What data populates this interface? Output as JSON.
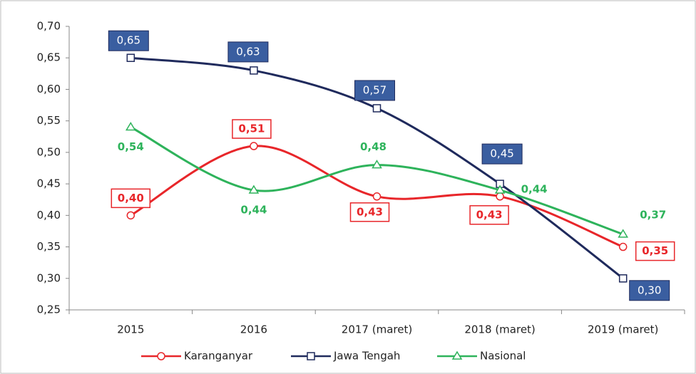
{
  "chart_data": {
    "type": "line",
    "categories": [
      "2015",
      "2016",
      "2017 (maret)",
      "2018 (maret)",
      "2019 (maret)"
    ],
    "series": [
      {
        "name": "Karanganyar",
        "color": "#e8262a",
        "values": [
          0.4,
          0.51,
          0.43,
          0.43,
          0.35
        ],
        "value_labels": [
          "0,40",
          "0,51",
          "0,43",
          "0,43",
          "0,35"
        ]
      },
      {
        "name": "Jawa Tengah",
        "color": "#1f2a5c",
        "values": [
          0.65,
          0.63,
          0.57,
          0.45,
          0.3
        ],
        "value_labels": [
          "0,65",
          "0,63",
          "0,57",
          "0,45",
          "0,30"
        ]
      },
      {
        "name": "Nasional",
        "color": "#2eb35b",
        "values": [
          0.54,
          0.44,
          0.48,
          0.44,
          0.37
        ],
        "value_labels": [
          "0,54",
          "0,44",
          "0,48",
          "0,44",
          "0,37"
        ]
      }
    ],
    "ylim": [
      0.25,
      0.7
    ],
    "yticks": [
      {
        "value": 0.25,
        "label": "0,25"
      },
      {
        "value": 0.3,
        "label": "0,30"
      },
      {
        "value": 0.35,
        "label": "0,35"
      },
      {
        "value": 0.4,
        "label": "0,40"
      },
      {
        "value": 0.45,
        "label": "0,45"
      },
      {
        "value": 0.5,
        "label": "0,50"
      },
      {
        "value": 0.55,
        "label": "0,55"
      },
      {
        "value": 0.6,
        "label": "0,60"
      },
      {
        "value": 0.65,
        "label": "0,65"
      },
      {
        "value": 0.7,
        "label": "0,70"
      }
    ],
    "grid": false,
    "legend": "bottom"
  }
}
